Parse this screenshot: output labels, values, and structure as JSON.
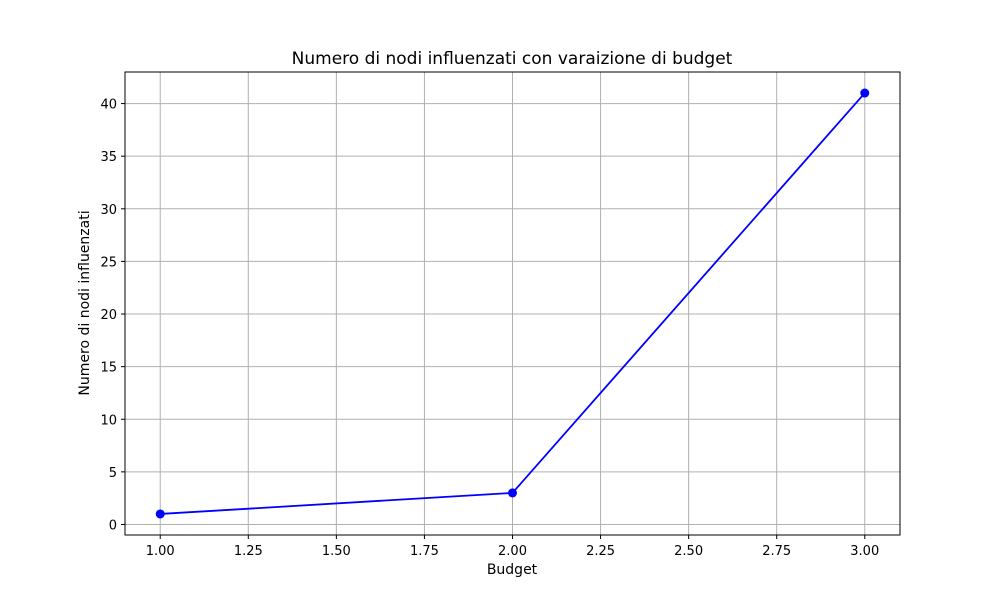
{
  "chart_data": {
    "type": "line",
    "title": "Numero di nodi influenzati con varaizione di budget",
    "xlabel": "Budget",
    "ylabel": "Numero di nodi influenzati",
    "xlim": [
      0.9,
      3.1
    ],
    "ylim": [
      -1,
      43
    ],
    "x_ticks": [
      1.0,
      1.25,
      1.5,
      1.75,
      2.0,
      2.25,
      2.5,
      2.75,
      3.0
    ],
    "x_tick_labels": [
      "1.00",
      "1.25",
      "1.50",
      "1.75",
      "2.00",
      "2.25",
      "2.50",
      "2.75",
      "3.00"
    ],
    "y_ticks": [
      0,
      5,
      10,
      15,
      20,
      25,
      30,
      35,
      40
    ],
    "y_tick_labels": [
      "0",
      "5",
      "10",
      "15",
      "20",
      "25",
      "30",
      "35",
      "40"
    ],
    "grid": true,
    "series": [
      {
        "x": [
          1,
          2,
          3
        ],
        "values": [
          1,
          3,
          41
        ],
        "color": "#0000ff",
        "marker": "circle"
      }
    ]
  }
}
